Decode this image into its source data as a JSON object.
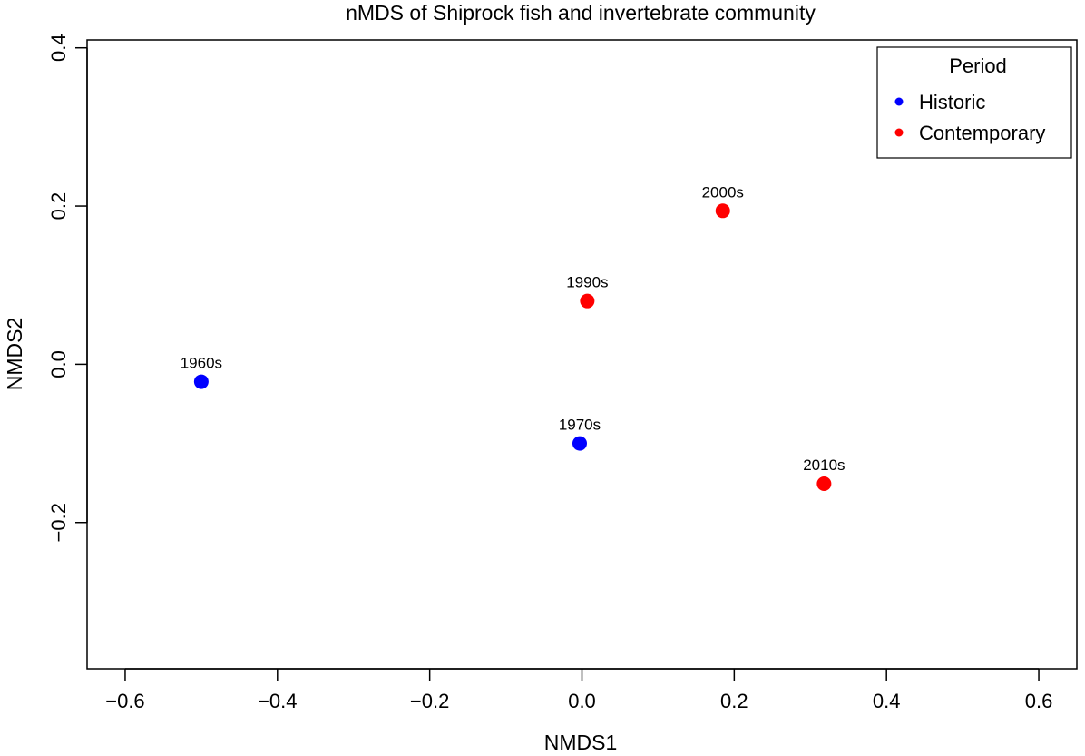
{
  "chart_data": {
    "type": "scatter",
    "title": "nMDS of Shiprock fish and invertebrate community",
    "xlabel": "NMDS1",
    "ylabel": "NMDS2",
    "xlim": [
      -0.65,
      0.65
    ],
    "ylim": [
      -0.385,
      0.41
    ],
    "x_ticks": [
      -0.6,
      -0.4,
      -0.2,
      0.0,
      0.2,
      0.4,
      0.6
    ],
    "x_tick_labels": [
      "−0.6",
      "−0.4",
      "−0.2",
      "0.0",
      "0.2",
      "0.4",
      "0.6"
    ],
    "y_ticks": [
      -0.2,
      0.0,
      0.2,
      0.4
    ],
    "y_tick_labels": [
      "−0.2",
      "0.0",
      "0.2",
      "0.4"
    ],
    "grid": false,
    "legend": {
      "title": "Period",
      "position": "top-right",
      "entries": [
        {
          "label": "Historic",
          "color": "#0000ff"
        },
        {
          "label": "Contemporary",
          "color": "#ff0000"
        }
      ]
    },
    "points": [
      {
        "label": "1960s",
        "x": -0.5,
        "y": -0.022,
        "period": "Historic",
        "color": "#0000ff"
      },
      {
        "label": "1970s",
        "x": -0.003,
        "y": -0.1,
        "period": "Historic",
        "color": "#0000ff"
      },
      {
        "label": "1990s",
        "x": 0.007,
        "y": 0.08,
        "period": "Contemporary",
        "color": "#ff0000"
      },
      {
        "label": "2000s",
        "x": 0.185,
        "y": 0.194,
        "period": "Contemporary",
        "color": "#ff0000"
      },
      {
        "label": "2010s",
        "x": 0.318,
        "y": -0.151,
        "period": "Contemporary",
        "color": "#ff0000"
      }
    ]
  }
}
